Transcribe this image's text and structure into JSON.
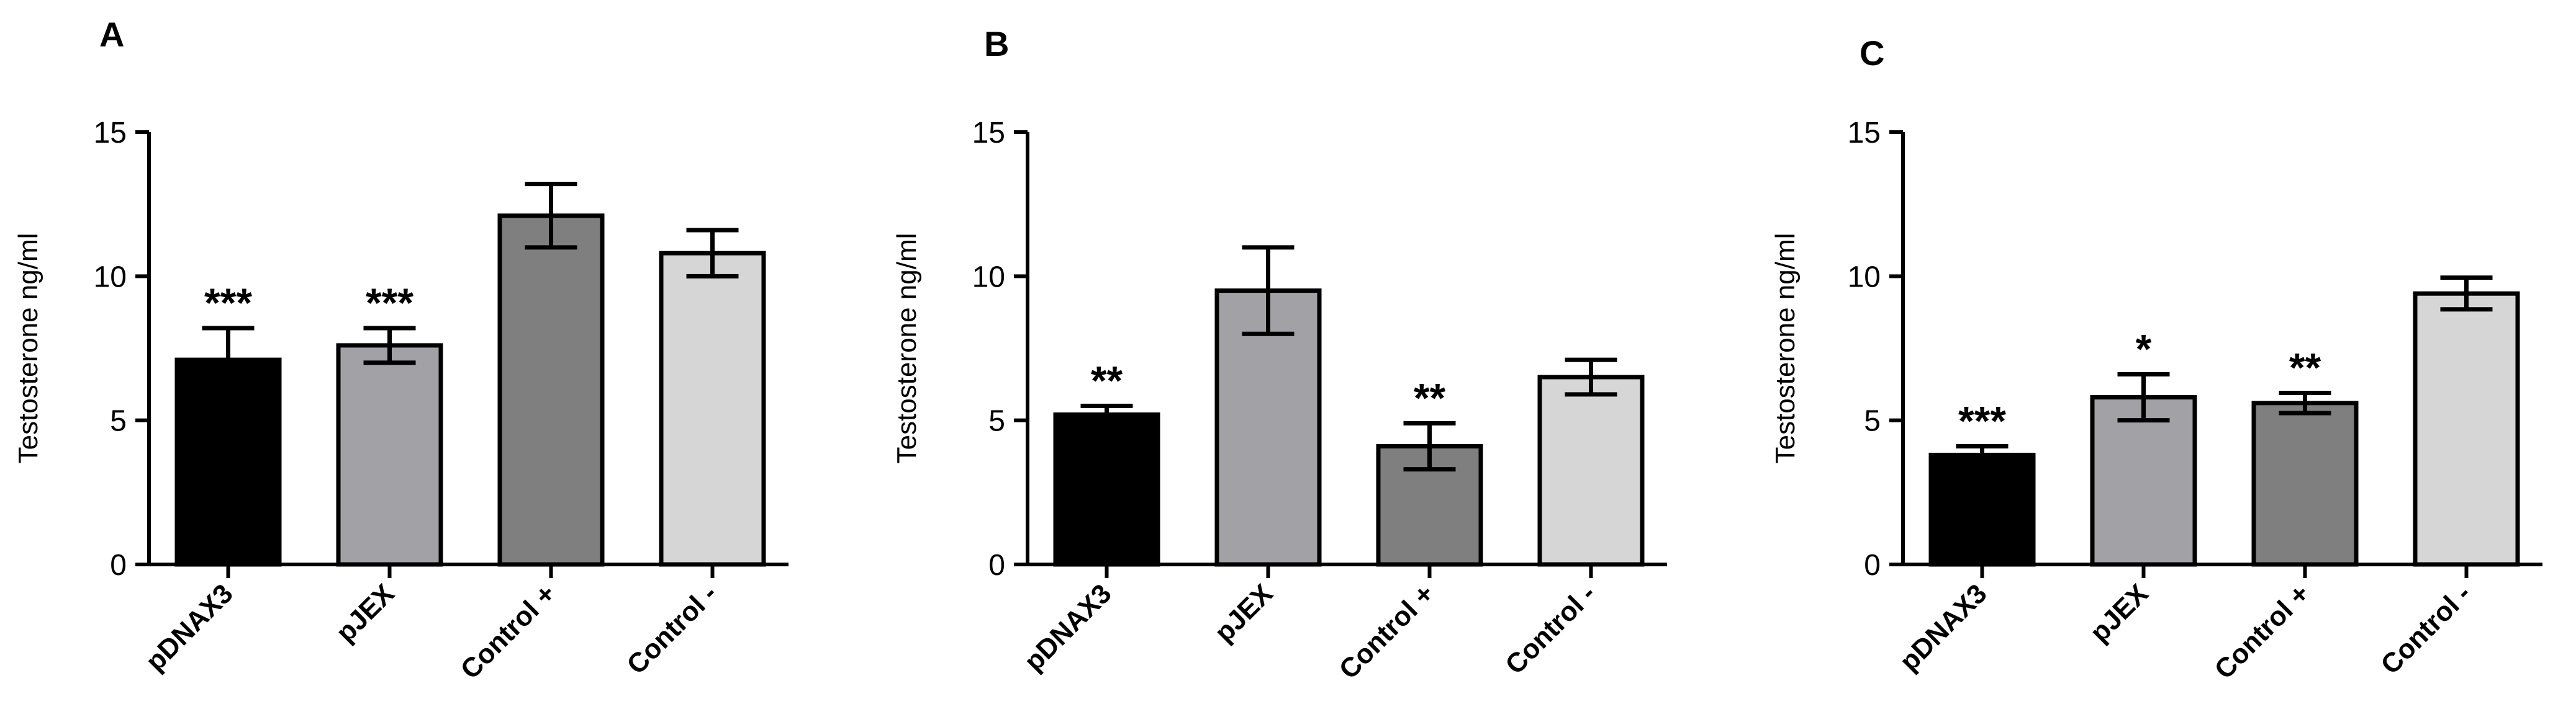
{
  "colors": {
    "pDNAX3": "#000000",
    "pJEX": "#a2a1a6",
    "Control +": "#7f7f7f",
    "Control -": "#d6d6d6",
    "outline": "#000000"
  },
  "chart_data": [
    {
      "type": "bar",
      "panel": "A",
      "ylabel": "Testosterone ng/ml",
      "ylim": [
        0,
        15
      ],
      "yticks": [
        0,
        5,
        10,
        15
      ],
      "categories": [
        "pDNAX3",
        "pJEX",
        "Control +",
        "Control -"
      ],
      "values": [
        7.1,
        7.6,
        12.1,
        10.8
      ],
      "errors": [
        1.1,
        0.6,
        1.1,
        0.8
      ],
      "significance": [
        "***",
        "***",
        "",
        ""
      ]
    },
    {
      "type": "bar",
      "panel": "B",
      "ylabel": "Testosterone ng/ml",
      "ylim": [
        0,
        15
      ],
      "yticks": [
        0,
        5,
        10,
        15
      ],
      "categories": [
        "pDNAX3",
        "pJEX",
        "Control +",
        "Control -"
      ],
      "values": [
        5.2,
        9.5,
        4.1,
        6.5
      ],
      "errors": [
        0.3,
        1.5,
        0.8,
        0.6
      ],
      "significance": [
        "**",
        "",
        "**",
        ""
      ]
    },
    {
      "type": "bar",
      "panel": "C",
      "ylabel": "Testosterone ng/ml",
      "ylim": [
        0,
        15
      ],
      "yticks": [
        0,
        5,
        10,
        15
      ],
      "categories": [
        "pDNAX3",
        "pJEX",
        "Control +",
        "Control -"
      ],
      "values": [
        3.8,
        5.8,
        5.6,
        9.4
      ],
      "errors": [
        0.3,
        0.8,
        0.35,
        0.55
      ],
      "significance": [
        "***",
        "*",
        "**",
        ""
      ]
    }
  ]
}
